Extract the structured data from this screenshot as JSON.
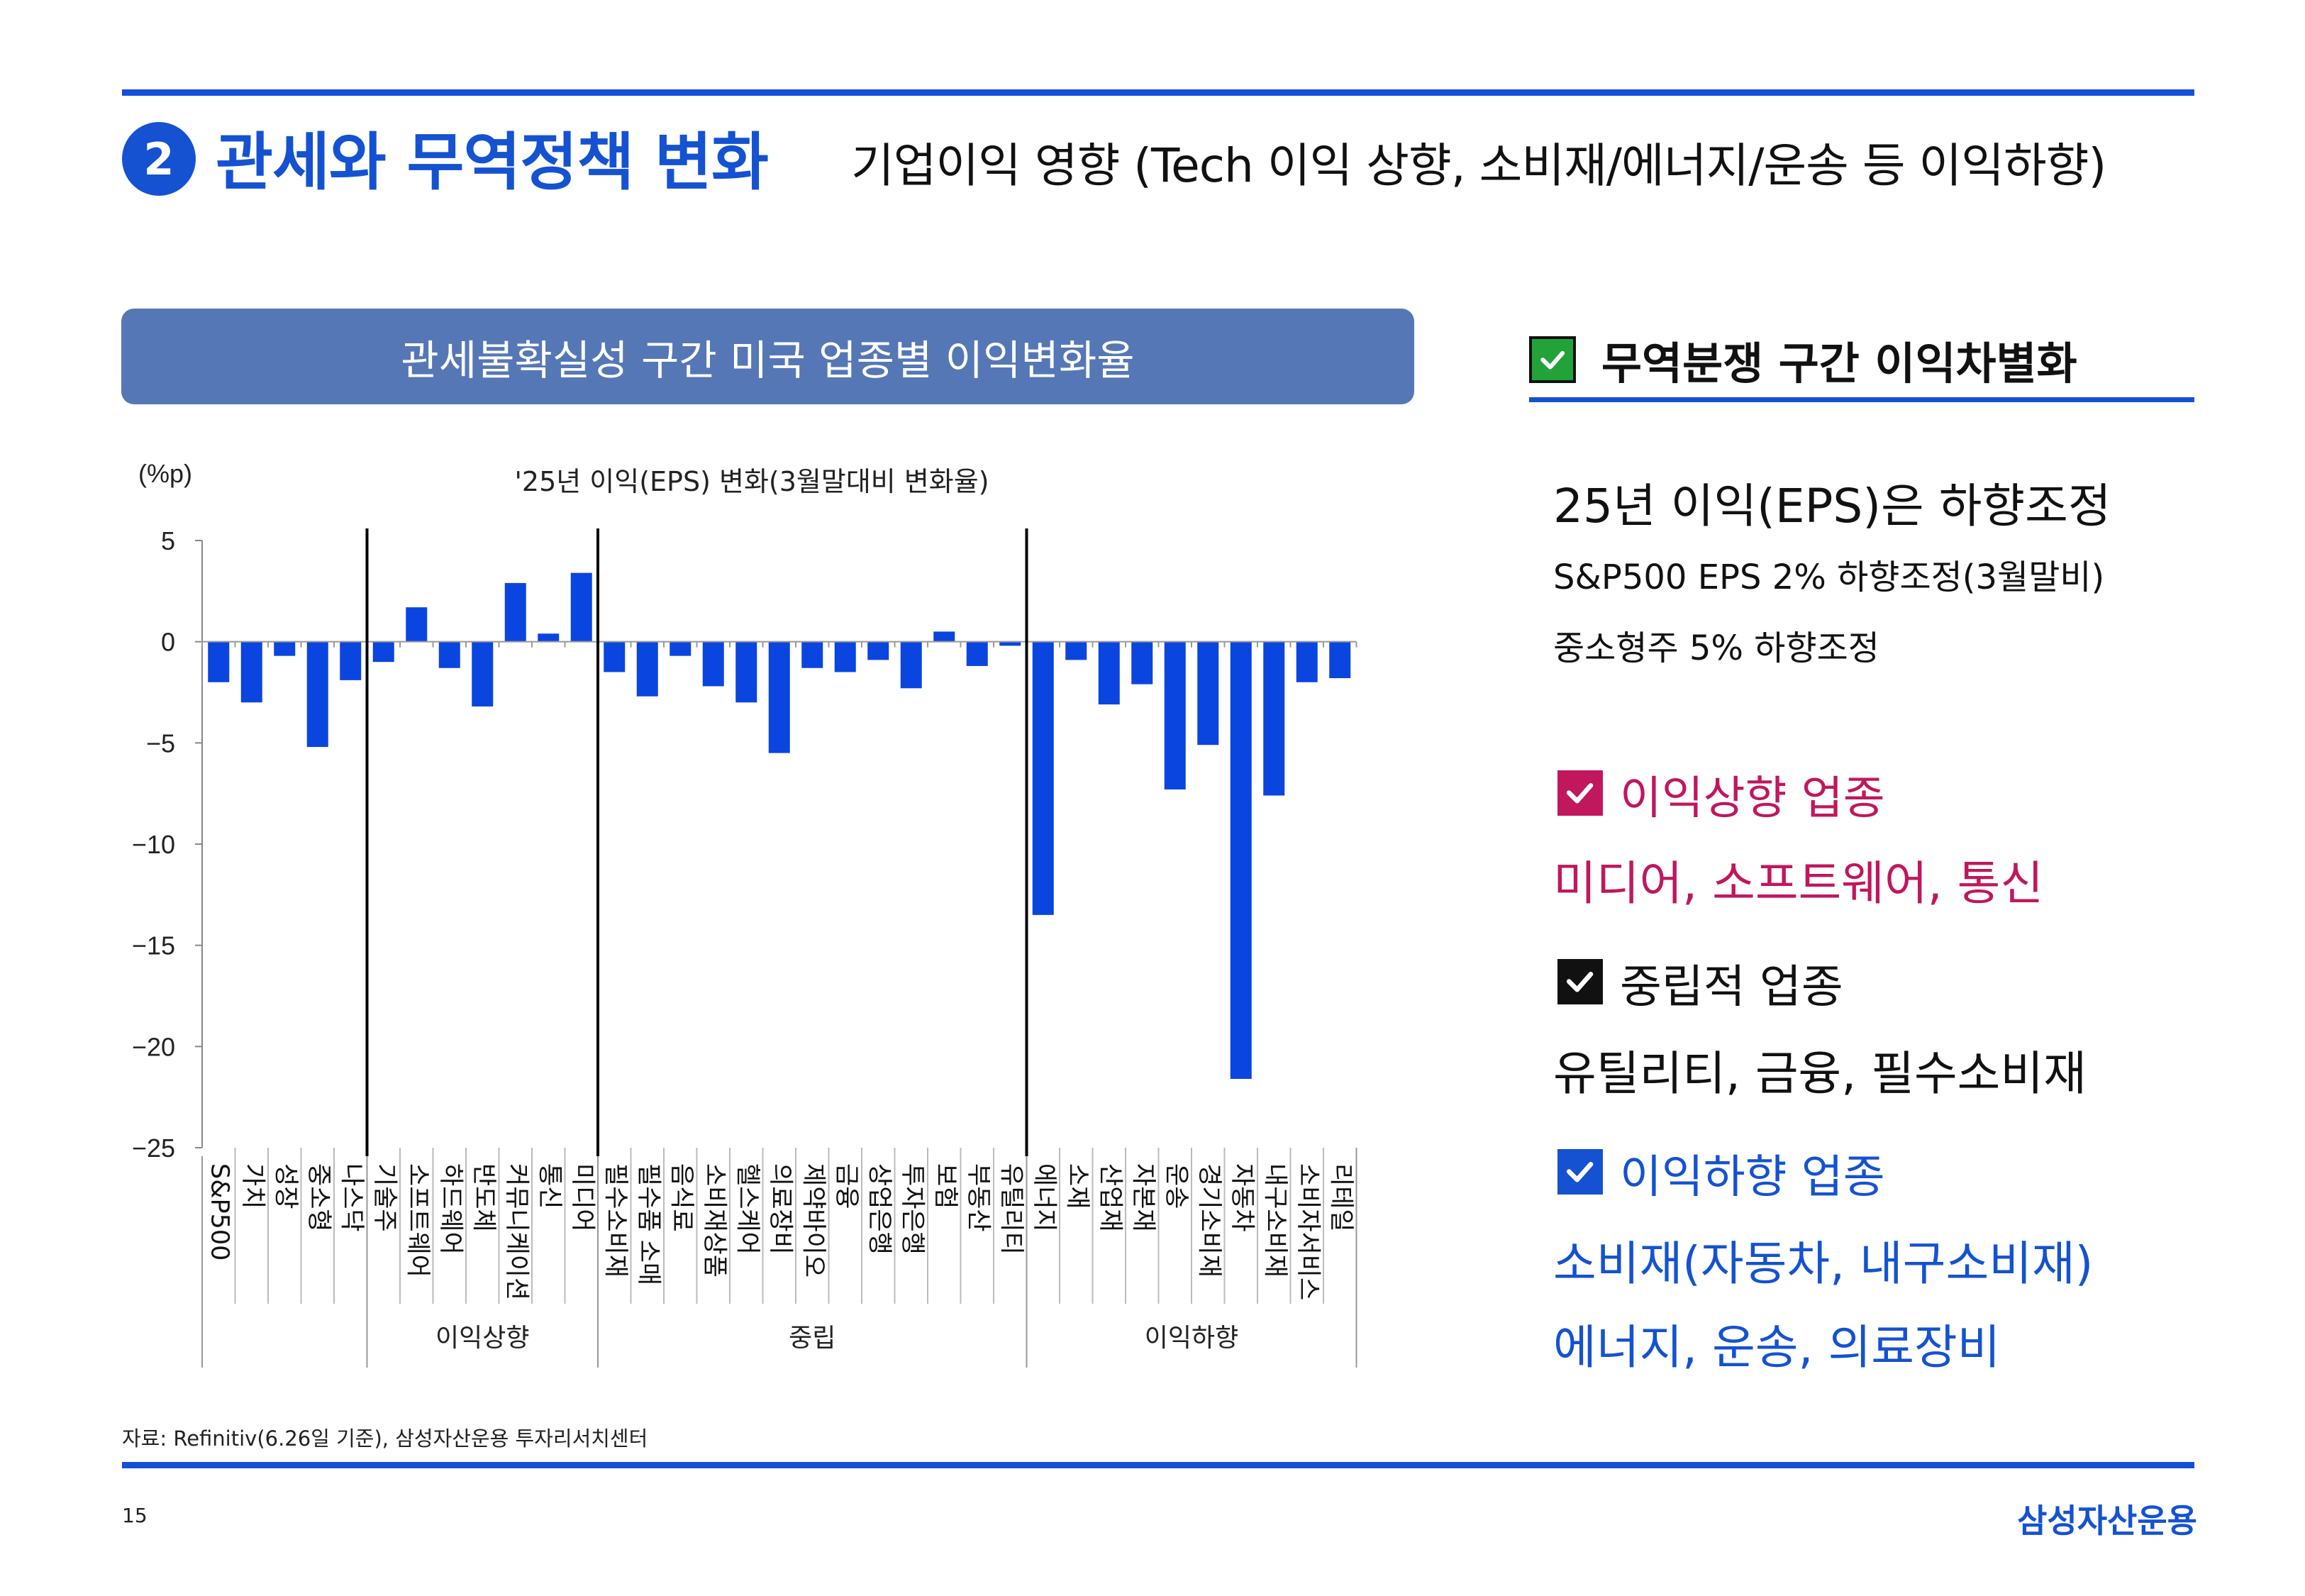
{
  "header": {
    "badge": "2",
    "title": "관세와 무역정책 변화",
    "subtitle": "기업이익 영향 (Tech 이익 상향, 소비재/에너지/운송 등 이익하향)"
  },
  "chart_banner": "관세불확실성 구간 미국 업종별 이익변화율",
  "chart_data": {
    "type": "bar",
    "title": "'25년 이익(EPS) 변화(3월말대비 변화율)",
    "ylabel": "(%p)",
    "ylim": [
      -25,
      5
    ],
    "yticks": [
      "5",
      "0",
      "-5",
      "-10",
      "-15",
      "-20",
      "-25"
    ],
    "color": "#0a45e0",
    "categories": [
      "S&P500",
      "가치",
      "성장",
      "중소형",
      "나스닥",
      "기술주",
      "소프트웨어",
      "하드웨어",
      "반도체",
      "커뮤니케이션",
      "통신",
      "미디어",
      "필수소비재",
      "필수품 소매",
      "음식료",
      "소비재상품",
      "헬스케어",
      "의료장비",
      "제약바이오",
      "금융",
      "상업은행",
      "투자은행",
      "보험",
      "부동산",
      "유틸리티",
      "에너지",
      "소재",
      "산업재",
      "자본재",
      "운송",
      "경기소비재",
      "자동차",
      "내구소비재",
      "소비자서비스",
      "리테일"
    ],
    "values": [
      -2.0,
      -3.0,
      -0.7,
      -5.2,
      -1.9,
      -1.0,
      1.7,
      -1.3,
      -3.2,
      2.9,
      0.4,
      3.4,
      -1.5,
      -2.7,
      -0.7,
      -2.2,
      -3.0,
      -5.5,
      -1.3,
      -1.5,
      -0.9,
      -2.3,
      0.5,
      -1.2,
      -0.2,
      -13.5,
      -0.9,
      -3.1,
      -2.1,
      -7.3,
      -5.1,
      -21.6,
      -7.6,
      -2.0,
      -1.8
    ],
    "groups": [
      {
        "label": "",
        "start": 0,
        "end": 4
      },
      {
        "label": "이익상향",
        "start": 5,
        "end": 11
      },
      {
        "label": "중립",
        "start": 12,
        "end": 24
      },
      {
        "label": "이익하향",
        "start": 25,
        "end": 34
      }
    ]
  },
  "right_panel": {
    "heading": "무역분쟁 구간 이익차별화",
    "heading_check_color": "#22a33a",
    "summary_title": "25년 이익(EPS)은 하향조정",
    "summary_line1": "S&P500 EPS 2% 하향조정(3월말비)",
    "summary_line2": "중소형주 5% 하향조정",
    "up": {
      "label": "이익상향 업종",
      "items": "미디어, 소프트웨어, 통신",
      "color": "#c0175d"
    },
    "neutral": {
      "label": "중립적 업종",
      "items": "유틸리티, 금융, 필수소비재",
      "color": "#111111"
    },
    "down": {
      "label": "이익하향 업종",
      "items_line1": "소비재(자동차, 내구소비재)",
      "items_line2": "에너지, 운송, 의료장비",
      "color": "#1452d2"
    }
  },
  "footer": {
    "source": "자료: Refinitiv(6.26일 기준), 삼성자산운용 투자리서치센터",
    "page": "15",
    "brand": "삼성자산운용"
  }
}
